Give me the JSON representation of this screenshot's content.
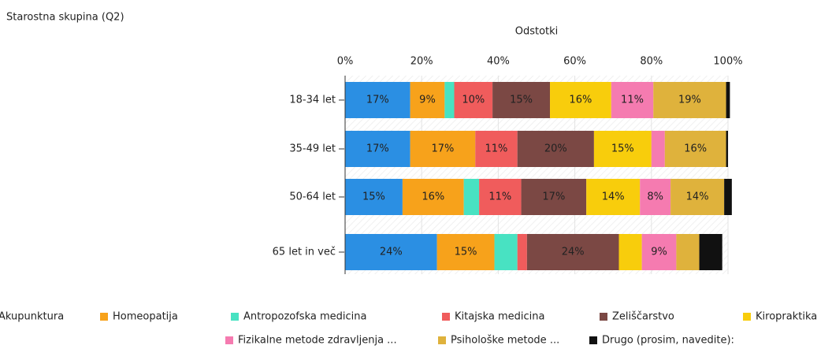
{
  "chart_data": {
    "type": "stacked_barh",
    "title": "Starostna skupina (Q2)",
    "xlabel": "Odstotki",
    "categories": [
      "18-34 let",
      "35-49 let",
      "50-64 let",
      "65 let in več"
    ],
    "xlim": [
      0,
      100
    ],
    "xticks": [
      {
        "value": 0,
        "label": "0%"
      },
      {
        "value": 20,
        "label": "20%"
      },
      {
        "value": 40,
        "label": "40%"
      },
      {
        "value": 60,
        "label": "60%"
      },
      {
        "value": 80,
        "label": "80%"
      },
      {
        "value": 100,
        "label": "100%"
      }
    ],
    "grid": true,
    "series": [
      {
        "name": "Akupunktura",
        "color": "#2b8fe3",
        "values": [
          17,
          17,
          15,
          24
        ],
        "value_labels": [
          "17%",
          "17%",
          "15%",
          "24%"
        ]
      },
      {
        "name": "Homeopatija",
        "color": "#f7a21b",
        "values": [
          9,
          17,
          16,
          15
        ],
        "value_labels": [
          "9%",
          "17%",
          "16%",
          "15%"
        ]
      },
      {
        "name": "Antropozofska medicina",
        "color": "#48e2c2",
        "values": [
          2.5,
          0,
          4,
          6
        ],
        "value_labels": [
          null,
          null,
          null,
          null
        ]
      },
      {
        "name": "Kitajska medicina",
        "color": "#f05c5c",
        "values": [
          10,
          11,
          11,
          2.5
        ],
        "value_labels": [
          "10%",
          "11%",
          "11%",
          null
        ]
      },
      {
        "name": "Zeliščarstvo",
        "color": "#7b4844",
        "values": [
          15,
          20,
          17,
          24
        ],
        "value_labels": [
          "15%",
          "20%",
          "17%",
          "24%"
        ]
      },
      {
        "name": "Kiropraktika",
        "color": "#f8cd0c",
        "values": [
          16,
          15,
          14,
          6
        ],
        "value_labels": [
          "16%",
          "15%",
          "14%",
          null
        ]
      },
      {
        "name": "Fizikalne metode zdravljenja ...",
        "color": "#f57bb0",
        "values": [
          11,
          3.5,
          8,
          9
        ],
        "value_labels": [
          "11%",
          null,
          "8%",
          "9%"
        ]
      },
      {
        "name": "Psihološke metode ...",
        "color": "#dfb23c",
        "values": [
          19,
          16,
          14,
          6
        ],
        "value_labels": [
          "19%",
          "16%",
          "14%",
          null
        ]
      },
      {
        "name": "Drugo (prosim, navedite):",
        "color": "#111111",
        "values": [
          1,
          0.5,
          2,
          6
        ],
        "value_labels": [
          null,
          null,
          null,
          null
        ]
      }
    ]
  }
}
